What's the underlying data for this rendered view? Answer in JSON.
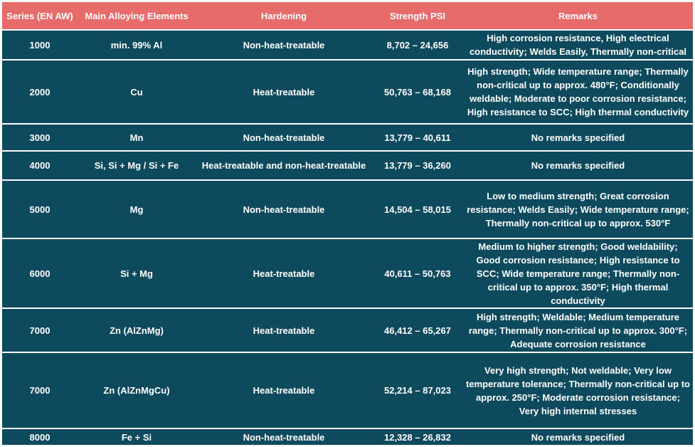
{
  "table": {
    "headers": [
      "Series (EN AW)",
      "Main Alloying Elements",
      "Hardening",
      "Strength PSI",
      "Remarks"
    ],
    "rows": [
      {
        "series": "1000",
        "elements": "min. 99% Al",
        "hardening": "Non-heat-treatable",
        "strength": "8,702 – 24,656",
        "remarks": "High corrosion resistance, High electrical conductivity; Welds Easily, Thermally non-critical"
      },
      {
        "series": "2000",
        "elements": "Cu",
        "hardening": "Heat-treatable",
        "strength": "50,763 – 68,168",
        "remarks": "High strength; Wide temperature range; Thermally non-critical up to approx. 480°F; Conditionally weldable; Moderate to poor corrosion resistance; High resistance to SCC; High thermal conductivity"
      },
      {
        "series": "3000",
        "elements": "Mn",
        "hardening": "Non-heat-treatable",
        "strength": "13,779 – 40,611",
        "remarks": "No remarks specified"
      },
      {
        "series": "4000",
        "elements": "Si, Si + Mg / Si + Fe",
        "hardening": "Heat-treatable and non-heat-treatable",
        "strength": "13,779 – 36,260",
        "remarks": "No remarks specified"
      },
      {
        "series": "5000",
        "elements": "Mg",
        "hardening": "Non-heat-treatable",
        "strength": "14,504 – 58,015",
        "remarks": "Low to medium strength; Great corrosion resistance; Welds Easily; Wide temperature range; Thermally non-critical up to approx. 530°F"
      },
      {
        "series": "6000",
        "elements": "Si + Mg",
        "hardening": "Heat-treatable",
        "strength": "40,611 – 50,763",
        "remarks": "Medium to higher strength; Good weldability; Good corrosion resistance; High resistance to SCC; Wide temperature range; Thermally non-critical up to approx. 350°F; High thermal conductivity"
      },
      {
        "series": "7000",
        "elements": "Zn (AlZnMg)",
        "hardening": "Heat-treatable",
        "strength": "46,412 – 65,267",
        "remarks": "High strength; Weldable; Medium temperature range; Thermally non-critical up to approx. 300°F; Adequate corrosion resistance"
      },
      {
        "series": "7000",
        "elements": "Zn (AlZnMgCu)",
        "hardening": "Heat-treatable",
        "strength": "52,214 – 87,023",
        "remarks": "Very high strength; Not weldable; Very low temperature tolerance; Thermally non-critical up to approx. 250°F; Moderate corrosion resistance; Very high internal stresses"
      },
      {
        "series": "8000",
        "elements": "Fe + Si",
        "hardening": "Non-heat-treatable",
        "strength": "12,328 – 26,832",
        "remarks": "No remarks specified"
      }
    ]
  },
  "colors": {
    "header_bg": "#e86b6b",
    "row_bg": "#0e4a5e",
    "text": "#ffffff"
  }
}
